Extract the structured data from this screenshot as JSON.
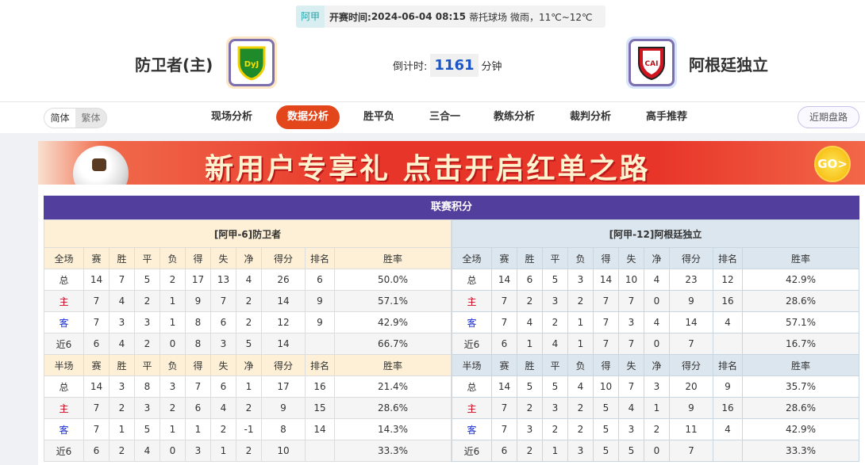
{
  "match": {
    "league": "阿甲",
    "time_label": "开赛时间:",
    "time": "2024-06-04 08:15",
    "venue": "蒂托球场",
    "weather": "微雨，11℃~12℃"
  },
  "home": {
    "name": "防卫者(主)",
    "logo_text": "DyJ"
  },
  "away": {
    "name": "阿根廷独立",
    "logo_text": "CAI"
  },
  "countdown": {
    "label": "倒计时:",
    "value": "1161",
    "unit": "分钟"
  },
  "lang": {
    "simplified": "简体",
    "traditional": "繁体"
  },
  "tabs": [
    {
      "label": "现场分析"
    },
    {
      "label": "数据分析",
      "active": true
    },
    {
      "label": "胜平负"
    },
    {
      "label": "三合一"
    },
    {
      "label": "教练分析"
    },
    {
      "label": "裁判分析"
    },
    {
      "label": "高手推荐"
    }
  ],
  "recent_label": "近期盘路",
  "banner": {
    "text": "新用户专享礼  点击开启红单之路",
    "go": "GO>"
  },
  "standings": {
    "title": "联赛积分",
    "columns_full": [
      "全场",
      "赛",
      "胜",
      "平",
      "负",
      "得",
      "失",
      "净",
      "得分",
      "排名",
      "胜率"
    ],
    "columns_half": [
      "半场",
      "赛",
      "胜",
      "平",
      "负",
      "得",
      "失",
      "净",
      "得分",
      "排名",
      "胜率"
    ],
    "home": {
      "team": "[阿甲-6]防卫者",
      "full": [
        [
          "总",
          "14",
          "7",
          "5",
          "2",
          "17",
          "13",
          "4",
          "26",
          "6",
          "50.0%"
        ],
        [
          "主",
          "7",
          "4",
          "2",
          "1",
          "9",
          "7",
          "2",
          "14",
          "9",
          "57.1%"
        ],
        [
          "客",
          "7",
          "3",
          "3",
          "1",
          "8",
          "6",
          "2",
          "12",
          "9",
          "42.9%"
        ],
        [
          "近6",
          "6",
          "4",
          "2",
          "0",
          "8",
          "3",
          "5",
          "14",
          "",
          "66.7%"
        ]
      ],
      "half": [
        [
          "总",
          "14",
          "3",
          "8",
          "3",
          "7",
          "6",
          "1",
          "17",
          "16",
          "21.4%"
        ],
        [
          "主",
          "7",
          "2",
          "3",
          "2",
          "6",
          "4",
          "2",
          "9",
          "15",
          "28.6%"
        ],
        [
          "客",
          "7",
          "1",
          "5",
          "1",
          "1",
          "2",
          "-1",
          "8",
          "14",
          "14.3%"
        ],
        [
          "近6",
          "6",
          "2",
          "4",
          "0",
          "3",
          "1",
          "2",
          "10",
          "",
          "33.3%"
        ]
      ]
    },
    "away": {
      "team": "[阿甲-12]阿根廷独立",
      "full": [
        [
          "总",
          "14",
          "6",
          "5",
          "3",
          "14",
          "10",
          "4",
          "23",
          "12",
          "42.9%"
        ],
        [
          "主",
          "7",
          "2",
          "3",
          "2",
          "7",
          "7",
          "0",
          "9",
          "16",
          "28.6%"
        ],
        [
          "客",
          "7",
          "4",
          "2",
          "1",
          "7",
          "3",
          "4",
          "14",
          "4",
          "57.1%"
        ],
        [
          "近6",
          "6",
          "1",
          "4",
          "1",
          "7",
          "7",
          "0",
          "7",
          "",
          "16.7%"
        ]
      ],
      "half": [
        [
          "总",
          "14",
          "5",
          "5",
          "4",
          "10",
          "7",
          "3",
          "20",
          "9",
          "35.7%"
        ],
        [
          "主",
          "7",
          "2",
          "3",
          "2",
          "5",
          "4",
          "1",
          "9",
          "16",
          "28.6%"
        ],
        [
          "客",
          "7",
          "3",
          "2",
          "2",
          "5",
          "3",
          "2",
          "11",
          "4",
          "42.9%"
        ],
        [
          "近6",
          "6",
          "2",
          "1",
          "3",
          "5",
          "5",
          "0",
          "7",
          "",
          "33.3%"
        ]
      ]
    }
  }
}
